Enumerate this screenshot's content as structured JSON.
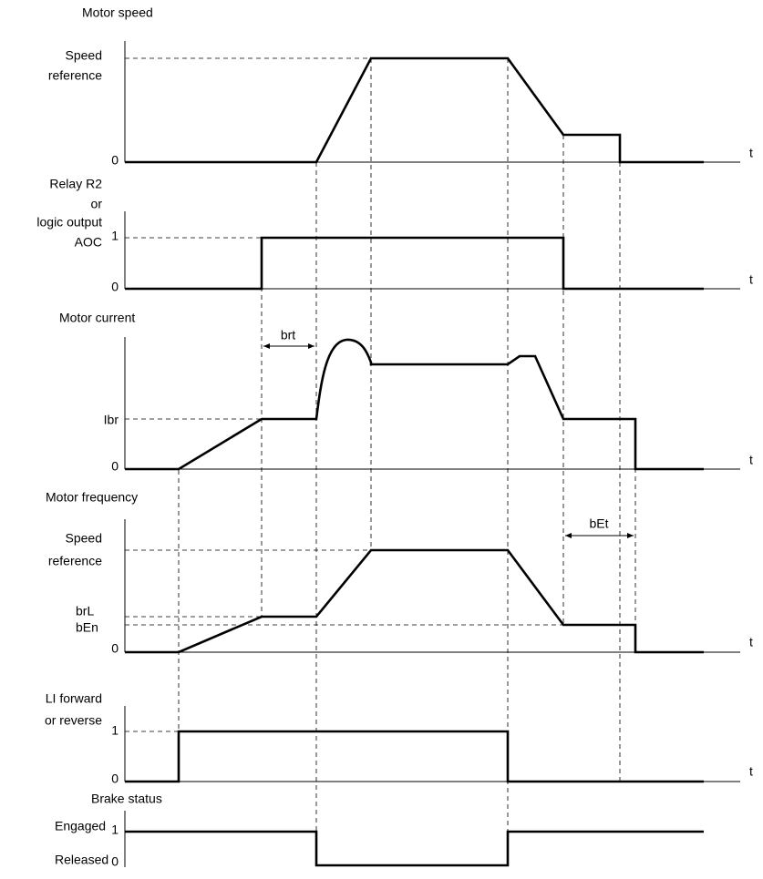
{
  "panels": [
    {
      "title": "Motor speed",
      "labels": [
        "Speed",
        "reference",
        "0"
      ],
      "axis_label": "t"
    },
    {
      "title": "Relay R2",
      "labels": [
        "or",
        "logic output",
        "AOC",
        "1",
        "0"
      ],
      "axis_label": "t"
    },
    {
      "title": "Motor current",
      "labels": [
        "Ibr",
        "0"
      ],
      "axis_label": "t",
      "annotation": "brt"
    },
    {
      "title": "Motor frequency",
      "labels": [
        "Speed",
        "reference",
        "brL",
        "bEn",
        "0"
      ],
      "axis_label": "t",
      "annotation": "bEt"
    },
    {
      "title": "LI forward",
      "labels": [
        "or reverse",
        "1",
        "0"
      ],
      "axis_label": "t"
    },
    {
      "title": "Brake status",
      "labels": [
        "Engaged",
        "1",
        "Released",
        "0"
      ]
    }
  ]
}
